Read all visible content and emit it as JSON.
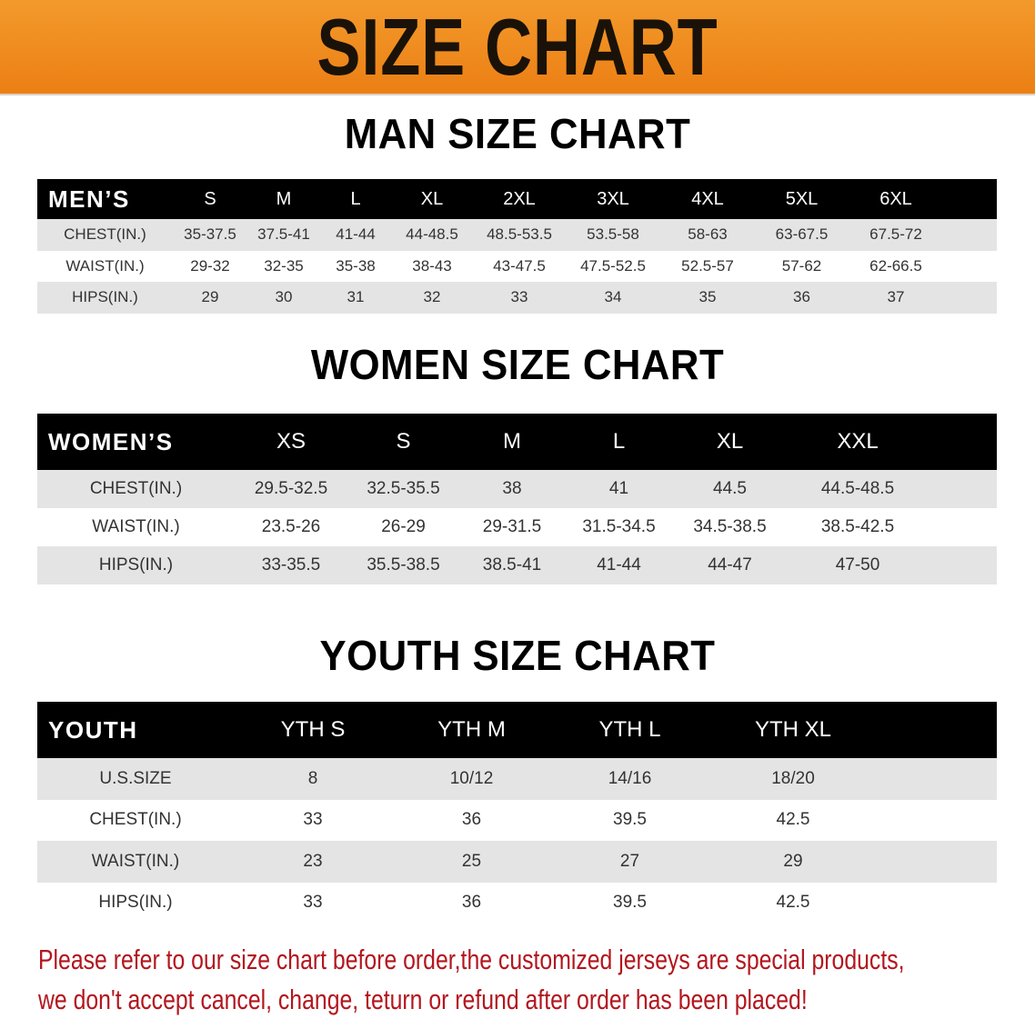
{
  "banner": {
    "title": "SIZE CHART",
    "color": "#ee8518"
  },
  "men": {
    "title": "MAN SIZE CHART",
    "header": [
      "MEN’S",
      "S",
      "M",
      "L",
      "XL",
      "2XL",
      "3XL",
      "4XL",
      "5XL",
      "6XL"
    ],
    "rows": [
      [
        "CHEST(IN.)",
        "35-37.5",
        "37.5-41",
        "41-44",
        "44-48.5",
        "48.5-53.5",
        "53.5-58",
        "58-63",
        "63-67.5",
        "67.5-72"
      ],
      [
        "WAIST(IN.)",
        "29-32",
        "32-35",
        "35-38",
        "38-43",
        "43-47.5",
        "47.5-52.5",
        "52.5-57",
        "57-62",
        "62-66.5"
      ],
      [
        "HIPS(IN.)",
        "29",
        "30",
        "31",
        "32",
        "33",
        "34",
        "35",
        "36",
        "37"
      ]
    ]
  },
  "women": {
    "title": "WOMEN SIZE CHART",
    "header": [
      "WOMEN’S",
      "XS",
      "S",
      "M",
      "L",
      "XL",
      "XXL"
    ],
    "rows": [
      [
        "CHEST(IN.)",
        "29.5-32.5",
        "32.5-35.5",
        "38",
        "41",
        "44.5",
        "44.5-48.5"
      ],
      [
        "WAIST(IN.)",
        "23.5-26",
        "26-29",
        "29-31.5",
        "31.5-34.5",
        "34.5-38.5",
        "38.5-42.5"
      ],
      [
        "HIPS(IN.)",
        "33-35.5",
        "35.5-38.5",
        "38.5-41",
        "41-44",
        "44-47",
        "47-50"
      ]
    ]
  },
  "youth": {
    "title": "YOUTH SIZE CHART",
    "header": [
      "YOUTH",
      "YTH S",
      "YTH M",
      "YTH L",
      "YTH XL"
    ],
    "rows": [
      [
        "U.S.SIZE",
        "8",
        "10/12",
        "14/16",
        "18/20"
      ],
      [
        "CHEST(IN.)",
        "33",
        "36",
        "39.5",
        "42.5"
      ],
      [
        "WAIST(IN.)",
        "23",
        "25",
        "27",
        "29"
      ],
      [
        "HIPS(IN.)",
        "33",
        "36",
        "39.5",
        "42.5"
      ]
    ]
  },
  "notice": {
    "line1": "Please refer to our size chart before order,the customized jerseys are special products,",
    "line2": "we don't accept cancel, change, teturn or refund after order has been placed!",
    "color": "#b3161e"
  }
}
